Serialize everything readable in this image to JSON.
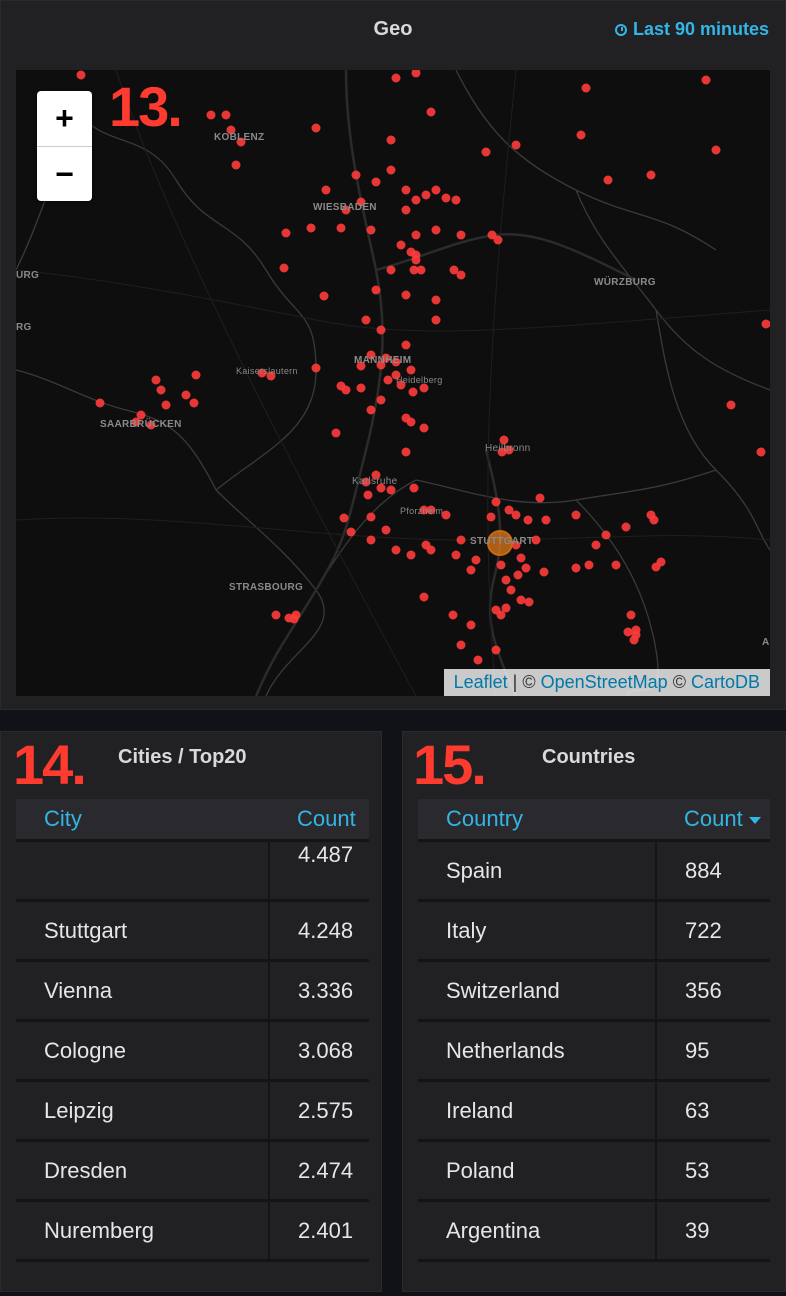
{
  "geo": {
    "title": "Geo",
    "time_range": "Last 90 minutes",
    "panel_number": "13.",
    "zoom_in": "+",
    "zoom_out": "−",
    "attribution": {
      "leaflet": "Leaflet",
      "sep": " | © ",
      "osm": "OpenStreetMap",
      "sep2": " © ",
      "carto": "CartoDB"
    },
    "map_labels": [
      "KOBLENZ",
      "WIESBADEN",
      "WÜRZBURG",
      "MANNHEIM",
      "Kaiserslautern",
      "Heidelberg",
      "SAARBRÜCKEN",
      "Heilbronn",
      "Karlsruhe",
      "Pforzheim",
      "STUTTGART",
      "STRASBOURG",
      "URG",
      "RG",
      "A"
    ],
    "marker_color": "#ff3b3b",
    "highlight_color": "#e07a1a"
  },
  "cities": {
    "title": "Cities / Top20",
    "panel_number": "14.",
    "headers": [
      "City",
      "Count"
    ],
    "rows": [
      [
        "",
        "4.487"
      ],
      [
        "Stuttgart",
        "4.248"
      ],
      [
        "Vienna",
        "3.336"
      ],
      [
        "Cologne",
        "3.068"
      ],
      [
        "Leipzig",
        "2.575"
      ],
      [
        "Dresden",
        "2.474"
      ],
      [
        "Nuremberg",
        "2.401"
      ]
    ]
  },
  "countries": {
    "title": "Countries",
    "panel_number": "15.",
    "headers": [
      "Country",
      "Count"
    ],
    "rows": [
      [
        "Spain",
        "884"
      ],
      [
        "Italy",
        "722"
      ],
      [
        "Switzerland",
        "356"
      ],
      [
        "Netherlands",
        "95"
      ],
      [
        "Ireland",
        "63"
      ],
      [
        "Poland",
        "53"
      ],
      [
        "Argentina",
        "39"
      ]
    ]
  },
  "colors": {
    "accent": "#33b5e5",
    "panel_bg": "#212124",
    "number_red": "#ff3b30"
  }
}
